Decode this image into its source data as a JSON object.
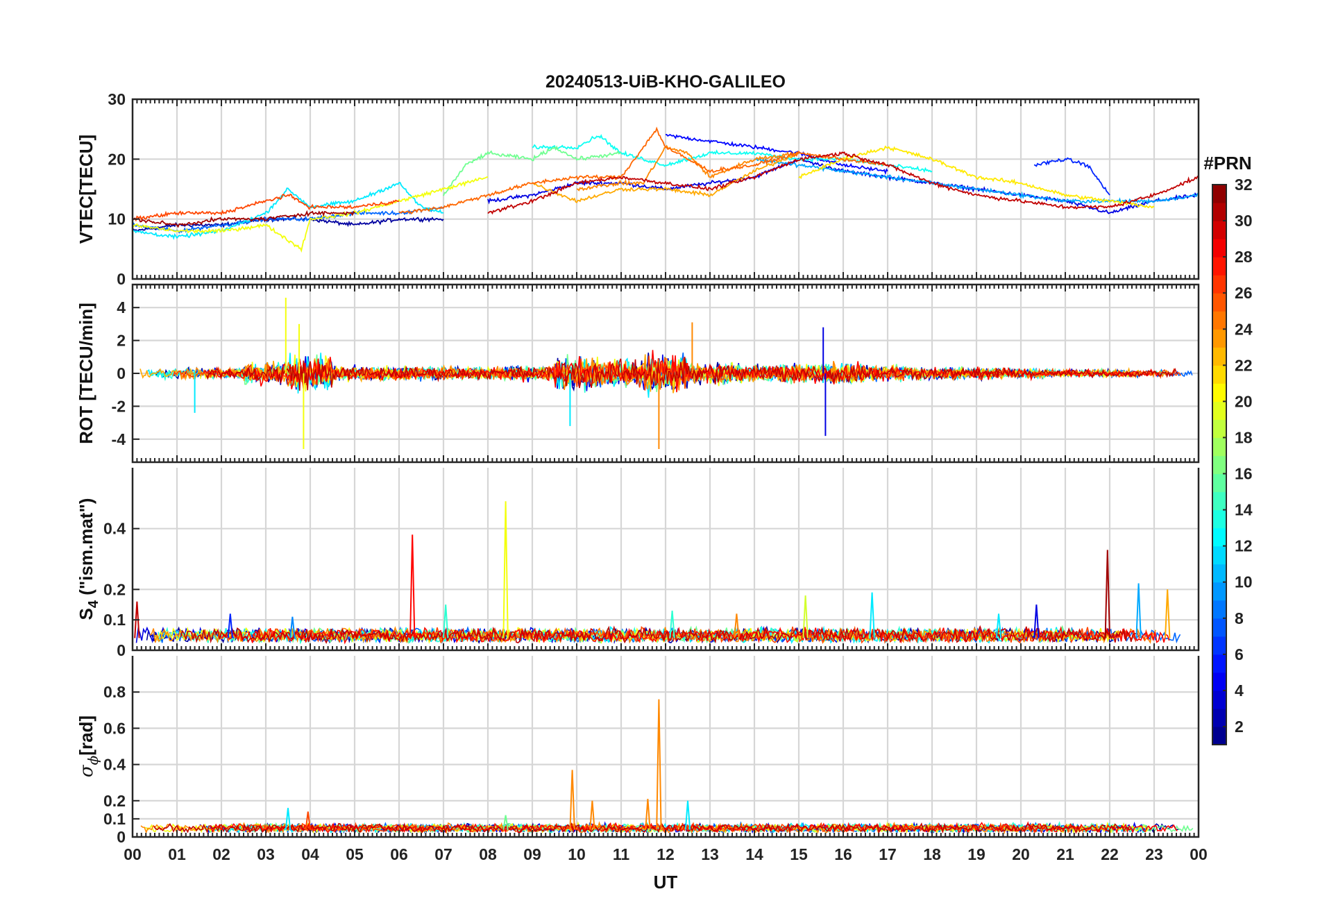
{
  "chart_data": {
    "type": "line",
    "title": "20240513-UiB-KHO-GALILEO",
    "xlabel": "UT",
    "x_ticks": [
      "00",
      "01",
      "02",
      "03",
      "04",
      "05",
      "06",
      "07",
      "08",
      "09",
      "10",
      "11",
      "12",
      "13",
      "14",
      "15",
      "16",
      "17",
      "18",
      "19",
      "20",
      "21",
      "22",
      "23",
      "00"
    ],
    "xlim": [
      0,
      24
    ],
    "grid": true,
    "colorbar": {
      "title": "#PRN",
      "colormap": "jet",
      "range": [
        1,
        32
      ],
      "ticks": [
        "2",
        "4",
        "6",
        "8",
        "10",
        "12",
        "14",
        "16",
        "18",
        "20",
        "22",
        "24",
        "26",
        "28",
        "30",
        "32"
      ]
    },
    "panels": [
      {
        "id": "vtec",
        "ylabel": "VTEC[TECU]",
        "ylim": [
          0,
          30
        ],
        "y_ticks": [
          0,
          10,
          20,
          30
        ],
        "y_tick_labels": [
          "0",
          "10",
          "20",
          "30"
        ],
        "series": [
          {
            "name": "PRN 2",
            "x": [
              0,
              1,
              2,
              3,
              4,
              5,
              6,
              7
            ],
            "y": [
              8,
              9,
              9,
              10,
              10,
              9,
              10,
              10
            ]
          },
          {
            "name": "PRN 4",
            "x": [
              8,
              9,
              10,
              11,
              12,
              13,
              14,
              15,
              16,
              17,
              18,
              19,
              20,
              21,
              22,
              23,
              24
            ],
            "y": [
              13,
              14,
              16,
              16,
              15,
              16,
              17,
              20,
              18,
              17,
              16,
              15,
              14,
              13,
              11,
              13,
              14
            ]
          },
          {
            "name": "PRN 5",
            "x": [
              12,
              13,
              14,
              15,
              16,
              17
            ],
            "y": [
              24,
              23,
              22,
              21,
              19,
              18
            ]
          },
          {
            "name": "PRN 6",
            "x": [
              20.3,
              21,
              21.5,
              22
            ],
            "y": [
              19,
              20,
              19,
              14
            ]
          },
          {
            "name": "PRN 8",
            "x": [
              0,
              1,
              2,
              3,
              4,
              5,
              6,
              7
            ],
            "y": [
              9,
              8,
              9,
              10,
              10,
              11,
              11,
              12
            ]
          },
          {
            "name": "PRN 10",
            "x": [
              14,
              15,
              16,
              17,
              18,
              19,
              20,
              21,
              22,
              23,
              24
            ],
            "y": [
              20,
              19,
              18,
              17,
              16,
              15,
              14,
              13,
              13,
              13,
              14
            ]
          },
          {
            "name": "PRN 12",
            "x": [
              0,
              1,
              2,
              3,
              3.5,
              4,
              5,
              6,
              6.5,
              7
            ],
            "y": [
              8,
              7,
              8,
              11,
              15,
              12,
              13,
              16,
              12,
              11
            ]
          },
          {
            "name": "PRN 13",
            "x": [
              9,
              10,
              10.5,
              11,
              12,
              13,
              14,
              15,
              16,
              17,
              18
            ],
            "y": [
              22,
              22,
              24,
              21,
              19,
              21,
              21,
              20,
              20,
              19,
              18
            ]
          },
          {
            "name": "PRN 16",
            "x": [
              7,
              7.5,
              8,
              9,
              9.5,
              10,
              11
            ],
            "y": [
              14,
              19,
              21,
              20,
              22,
              20,
              21
            ]
          },
          {
            "name": "PRN 20",
            "x": [
              0,
              1,
              2,
              3,
              3.8,
              4,
              5,
              6,
              7,
              8
            ],
            "y": [
              9,
              8,
              8,
              9,
              5,
              10,
              11,
              13,
              15,
              17
            ]
          },
          {
            "name": "PRN 21",
            "x": [
              15,
              16,
              17,
              18,
              19,
              20,
              21,
              22,
              23
            ],
            "y": [
              17,
              20,
              22,
              20,
              17,
              16,
              14,
              13,
              12
            ]
          },
          {
            "name": "PRN 23",
            "x": [
              9,
              10,
              11,
              12,
              13,
              14,
              15
            ],
            "y": [
              16,
              13,
              15,
              15,
              14,
              18,
              21
            ]
          },
          {
            "name": "PRN 24",
            "x": [
              10,
              11,
              11.5,
              12,
              12.5,
              13,
              14,
              15
            ],
            "y": [
              15,
              16,
              16,
              22,
              21,
              17,
              20,
              21
            ]
          },
          {
            "name": "PRN 25",
            "x": [
              6,
              7,
              8,
              9,
              10,
              11,
              11.8,
              12,
              13,
              14,
              15,
              16,
              17
            ],
            "y": [
              11,
              12,
              14,
              16,
              17,
              17,
              25,
              22,
              18,
              19,
              21,
              20,
              19
            ]
          },
          {
            "name": "PRN 26",
            "x": [
              0,
              1,
              2,
              3,
              3.5,
              4,
              5,
              6
            ],
            "y": [
              10,
              11,
              11,
              13,
              14,
              12,
              12,
              13
            ]
          },
          {
            "name": "PRN 30",
            "x": [
              8,
              9,
              10,
              11,
              12,
              13,
              14,
              15,
              16,
              17,
              18,
              19,
              20,
              21,
              22,
              23,
              24
            ],
            "y": [
              11,
              13,
              16,
              17,
              16,
              15,
              17,
              20,
              21,
              19,
              16,
              14,
              13,
              12,
              12,
              14,
              17
            ]
          },
          {
            "name": "PRN 31",
            "x": [
              0,
              1,
              2,
              3,
              4,
              5
            ],
            "y": [
              10,
              9,
              10,
              10,
              11,
              11
            ]
          }
        ]
      },
      {
        "id": "rot",
        "ylabel": "ROT [TECU/min]",
        "ylim": [
          -5.4,
          5.4
        ],
        "y_ticks": [
          -4,
          -2,
          0,
          2,
          4
        ],
        "y_tick_labels": [
          "-4",
          "-2",
          "0",
          "2",
          "4"
        ],
        "noise_amplitude": [
          0.5,
          0.5,
          0.4,
          0.9,
          1.4,
          0.6,
          0.6,
          0.5,
          0.5,
          0.6,
          1.3,
          1.1,
          1.6,
          0.9,
          0.7,
          0.8,
          0.9,
          0.6,
          0.5,
          0.5,
          0.4,
          0.3,
          0.3,
          0.3,
          0.3
        ],
        "spikes": [
          {
            "x": 3.45,
            "y": 4.6,
            "prn": 20
          },
          {
            "x": 3.85,
            "y": -4.6,
            "prn": 20
          },
          {
            "x": 3.75,
            "y": 3.0,
            "prn": 20
          },
          {
            "x": 11.85,
            "y": -4.6,
            "prn": 24
          },
          {
            "x": 12.6,
            "y": 3.1,
            "prn": 24
          },
          {
            "x": 15.6,
            "y": -3.8,
            "prn": 4
          },
          {
            "x": 15.55,
            "y": 2.8,
            "prn": 4
          },
          {
            "x": 9.85,
            "y": -3.2,
            "prn": 12
          },
          {
            "x": 1.4,
            "y": -2.4,
            "prn": 12
          }
        ]
      },
      {
        "id": "s4",
        "ylabel": "S4 (\"ism.mat\")",
        "ylabel_main": "S",
        "ylabel_sub": "4",
        "ylabel_rest": " (\"ism.mat\")",
        "ylim": [
          0,
          0.6
        ],
        "y_ticks": [
          0,
          0.1,
          0.2,
          0.4
        ],
        "y_tick_labels": [
          "0",
          "0.1",
          "0.2",
          "0.4"
        ],
        "baseline": 0.04,
        "spikes": [
          {
            "x": 6.3,
            "y": 0.38,
            "prn": 28
          },
          {
            "x": 8.4,
            "y": 0.49,
            "prn": 20
          },
          {
            "x": 21.95,
            "y": 0.33,
            "prn": 31
          },
          {
            "x": 22.65,
            "y": 0.22,
            "prn": 10
          },
          {
            "x": 23.3,
            "y": 0.2,
            "prn": 23
          },
          {
            "x": 20.35,
            "y": 0.15,
            "prn": 4
          },
          {
            "x": 16.65,
            "y": 0.19,
            "prn": 12
          },
          {
            "x": 15.15,
            "y": 0.18,
            "prn": 19
          },
          {
            "x": 7.05,
            "y": 0.15,
            "prn": 14
          },
          {
            "x": 0.1,
            "y": 0.16,
            "prn": 30
          },
          {
            "x": 2.2,
            "y": 0.12,
            "prn": 6
          },
          {
            "x": 3.6,
            "y": 0.11,
            "prn": 9
          },
          {
            "x": 12.15,
            "y": 0.13,
            "prn": 14
          },
          {
            "x": 13.6,
            "y": 0.12,
            "prn": 24
          },
          {
            "x": 19.5,
            "y": 0.12,
            "prn": 12
          }
        ]
      },
      {
        "id": "sigma_phi",
        "ylabel": "σφ[rad]",
        "ylabel_main": "σ",
        "ylabel_sub": "ϕ",
        "ylabel_rest": "[rad]",
        "ylim": [
          0,
          1.0
        ],
        "y_ticks": [
          0,
          0.1,
          0.2,
          0.4,
          0.6,
          0.8
        ],
        "y_tick_labels": [
          "0",
          "0.1",
          "0.2",
          "0.4",
          "0.6",
          "0.8"
        ],
        "baseline": 0.04,
        "spikes": [
          {
            "x": 11.85,
            "y": 0.76,
            "prn": 24
          },
          {
            "x": 9.9,
            "y": 0.37,
            "prn": 24
          },
          {
            "x": 11.6,
            "y": 0.21,
            "prn": 24
          },
          {
            "x": 10.35,
            "y": 0.2,
            "prn": 24
          },
          {
            "x": 12.5,
            "y": 0.2,
            "prn": 12
          },
          {
            "x": 3.5,
            "y": 0.16,
            "prn": 12
          },
          {
            "x": 3.95,
            "y": 0.14,
            "prn": 26
          },
          {
            "x": 8.4,
            "y": 0.12,
            "prn": 16
          }
        ]
      }
    ]
  }
}
